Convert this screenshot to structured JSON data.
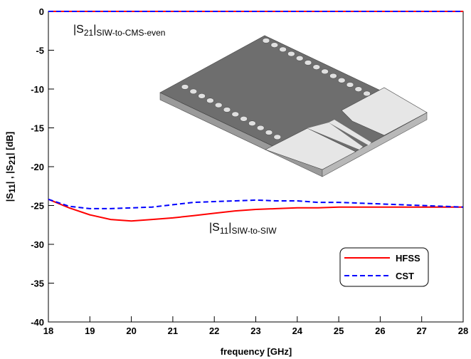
{
  "chart_data": {
    "type": "line",
    "x_label": "frequency [GHz]",
    "y_label": {
      "p1": "|S",
      "s1": "11",
      "p2": "| , |S",
      "s2": "21",
      "p3": "|  [dB]"
    },
    "annotations": [
      {
        "pre": "|S",
        "sub": "21",
        "mid": "|",
        "sub2": "SIW-to-CMS-even"
      },
      {
        "pre": "|S",
        "sub": "11",
        "mid": "|",
        "sub2": "SIW-to-SIW"
      }
    ],
    "x": [
      18,
      18.5,
      19,
      19.5,
      20,
      20.5,
      21,
      21.5,
      22,
      22.5,
      23,
      23.5,
      24,
      24.5,
      25,
      25.5,
      26,
      26.5,
      27,
      27.5,
      28
    ],
    "series": [
      {
        "name": "HFSS",
        "color": "#ff0000",
        "dash": false,
        "values": [
          -24.2,
          -25.3,
          -26.2,
          -26.8,
          -27.0,
          -26.8,
          -26.6,
          -26.3,
          -26.0,
          -25.7,
          -25.5,
          -25.4,
          -25.3,
          -25.3,
          -25.2,
          -25.2,
          -25.2,
          -25.2,
          -25.2,
          -25.2,
          -25.2
        ],
        "s21_values": [
          0,
          0,
          0,
          0,
          0,
          0,
          0,
          0,
          0,
          0,
          0,
          0,
          0,
          0,
          0,
          0,
          0,
          0,
          0,
          0,
          0
        ]
      },
      {
        "name": "CST",
        "color": "#0000ff",
        "dash": true,
        "values": [
          -24.2,
          -25.1,
          -25.4,
          -25.4,
          -25.3,
          -25.2,
          -24.9,
          -24.6,
          -24.5,
          -24.4,
          -24.3,
          -24.4,
          -24.4,
          -24.6,
          -24.6,
          -24.7,
          -24.8,
          -24.9,
          -25.0,
          -25.1,
          -25.2
        ],
        "s21_values": [
          0,
          0,
          0,
          0,
          0,
          0,
          0,
          0,
          0,
          0,
          0,
          0,
          0,
          0,
          0,
          0,
          0,
          0,
          0,
          0,
          0
        ]
      }
    ],
    "xlim": [
      18,
      28
    ],
    "xticks": [
      18,
      19,
      20,
      21,
      22,
      23,
      24,
      25,
      26,
      27,
      28
    ],
    "ylim": [
      -40,
      0
    ],
    "yticks": [
      -40,
      -35,
      -30,
      -25,
      -20,
      -15,
      -10,
      -5,
      0
    ]
  }
}
